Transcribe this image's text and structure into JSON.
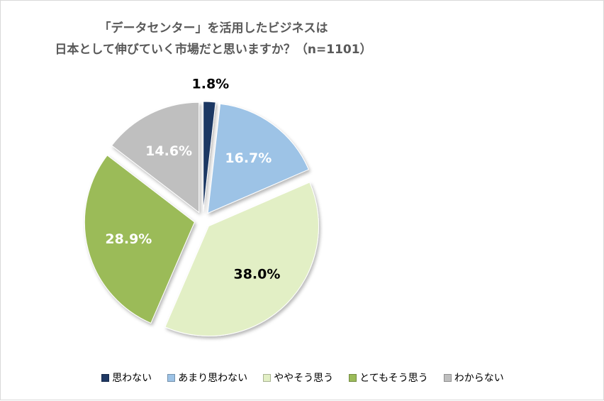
{
  "chart_data": {
    "type": "pie",
    "title_lines": [
      "「データセンター」を活用したビジネスは",
      "日本として伸びていく市場だと思いますか？（n=1101）"
    ],
    "categories": [
      "思わない",
      "あまり思わない",
      "ややそう思う",
      "とてもそう思う",
      "わからない"
    ],
    "values": [
      1.8,
      16.7,
      38.0,
      28.9,
      14.6
    ],
    "labels": [
      "1.8%",
      "16.7%",
      "38.0%",
      "28.9%",
      "14.6%"
    ],
    "colors": [
      "#1f3864",
      "#9dc3e6",
      "#e2efc5",
      "#9bbb59",
      "#bfbfbf"
    ],
    "label_colors": [
      "#000000",
      "#ffffff",
      "#000000",
      "#ffffff",
      "#ffffff"
    ],
    "exploded": [
      true,
      true,
      true,
      true,
      true
    ],
    "legend_position": "bottom"
  }
}
